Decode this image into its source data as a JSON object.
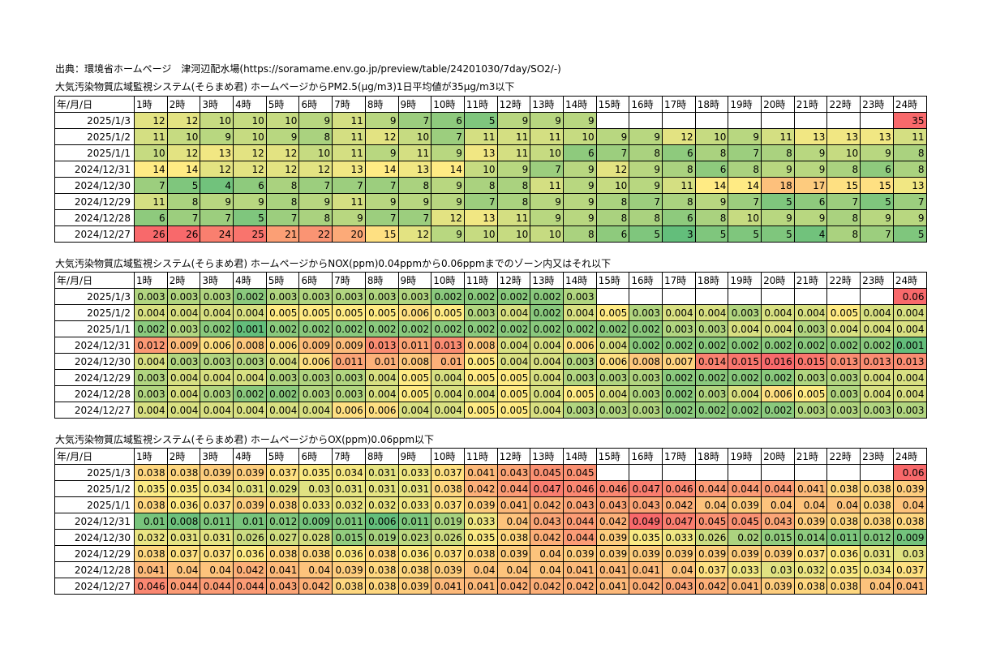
{
  "source_line": "出典：環境省ホームページ　津河辺配水場(https://soramame.env.go.jp/preview/table/24201030/7day/SO2/-)",
  "row_header": "年/月/日",
  "hours": [
    "1時",
    "2時",
    "3時",
    "4時",
    "5時",
    "6時",
    "7時",
    "8時",
    "9時",
    "10時",
    "11時",
    "12時",
    "13時",
    "14時",
    "15時",
    "16時",
    "17時",
    "18時",
    "19時",
    "20時",
    "21時",
    "22時",
    "23時",
    "24時"
  ],
  "dates": [
    "2025/1/3",
    "2025/1/2",
    "2025/1/1",
    "2024/12/31",
    "2024/12/30",
    "2024/12/29",
    "2024/12/28",
    "2024/12/27"
  ],
  "tables": [
    {
      "title": "大気汚染物質広域監視システム(そらまめ君) ホームページからPM2.5(μg/m3)1日平均値が35μg/m3以下",
      "rows": [
        [
          "12",
          "12",
          "10",
          "10",
          "10",
          "9",
          "11",
          "9",
          "7",
          "6",
          "5",
          "9",
          "9",
          "9",
          "",
          "",
          "",
          "",
          "",
          "",
          "",
          "",
          "",
          "35"
        ],
        [
          "11",
          "10",
          "9",
          "10",
          "9",
          "8",
          "11",
          "12",
          "10",
          "7",
          "11",
          "11",
          "11",
          "10",
          "9",
          "9",
          "12",
          "10",
          "9",
          "11",
          "13",
          "13",
          "13",
          "11"
        ],
        [
          "10",
          "12",
          "13",
          "12",
          "12",
          "10",
          "11",
          "9",
          "11",
          "9",
          "13",
          "11",
          "10",
          "6",
          "7",
          "8",
          "6",
          "8",
          "7",
          "8",
          "9",
          "10",
          "9",
          "8"
        ],
        [
          "14",
          "14",
          "12",
          "12",
          "12",
          "12",
          "13",
          "14",
          "13",
          "14",
          "10",
          "9",
          "7",
          "9",
          "12",
          "9",
          "8",
          "6",
          "8",
          "9",
          "9",
          "8",
          "6",
          "8"
        ],
        [
          "7",
          "5",
          "4",
          "6",
          "8",
          "7",
          "7",
          "7",
          "8",
          "9",
          "8",
          "8",
          "11",
          "9",
          "10",
          "9",
          "11",
          "14",
          "14",
          "18",
          "17",
          "15",
          "15",
          "13"
        ],
        [
          "11",
          "8",
          "9",
          "9",
          "8",
          "9",
          "11",
          "9",
          "9",
          "9",
          "7",
          "8",
          "9",
          "9",
          "8",
          "7",
          "8",
          "9",
          "7",
          "5",
          "6",
          "7",
          "5",
          "7"
        ],
        [
          "6",
          "7",
          "7",
          "5",
          "7",
          "8",
          "9",
          "7",
          "7",
          "12",
          "13",
          "11",
          "9",
          "9",
          "8",
          "8",
          "6",
          "8",
          "10",
          "9",
          "9",
          "8",
          "9",
          "9"
        ],
        [
          "26",
          "26",
          "24",
          "25",
          "21",
          "22",
          "20",
          "15",
          "12",
          "9",
          "10",
          "10",
          "10",
          "8",
          "6",
          "5",
          "3",
          "5",
          "5",
          "5",
          "4",
          "8",
          "7",
          "5"
        ]
      ],
      "scale": [
        3,
        14,
        26
      ]
    },
    {
      "title": "大気汚染物質広域監視システム(そらまめ君) ホームページからNOX(ppm)0.04ppmから0.06ppmまでのゾーン内又はそれ以下",
      "rows": [
        [
          "0.003",
          "0.003",
          "0.003",
          "0.002",
          "0.003",
          "0.003",
          "0.003",
          "0.003",
          "0.003",
          "0.002",
          "0.002",
          "0.002",
          "0.002",
          "0.003",
          "",
          "",
          "",
          "",
          "",
          "",
          "",
          "",
          "",
          "0.06"
        ],
        [
          "0.004",
          "0.004",
          "0.004",
          "0.004",
          "0.005",
          "0.005",
          "0.005",
          "0.005",
          "0.006",
          "0.005",
          "0.003",
          "0.004",
          "0.002",
          "0.004",
          "0.005",
          "0.003",
          "0.004",
          "0.004",
          "0.003",
          "0.004",
          "0.004",
          "0.005",
          "0.004",
          "0.004"
        ],
        [
          "0.002",
          "0.003",
          "0.002",
          "0.001",
          "0.002",
          "0.002",
          "0.002",
          "0.002",
          "0.002",
          "0.002",
          "0.002",
          "0.002",
          "0.002",
          "0.002",
          "0.002",
          "0.002",
          "0.003",
          "0.003",
          "0.004",
          "0.004",
          "0.003",
          "0.004",
          "0.004",
          "0.004"
        ],
        [
          "0.012",
          "0.009",
          "0.006",
          "0.008",
          "0.006",
          "0.009",
          "0.009",
          "0.013",
          "0.011",
          "0.013",
          "0.008",
          "0.004",
          "0.004",
          "0.006",
          "0.004",
          "0.002",
          "0.002",
          "0.002",
          "0.002",
          "0.002",
          "0.002",
          "0.002",
          "0.002",
          "0.001"
        ],
        [
          "0.004",
          "0.003",
          "0.003",
          "0.003",
          "0.004",
          "0.006",
          "0.011",
          "0.01",
          "0.008",
          "0.01",
          "0.005",
          "0.004",
          "0.004",
          "0.003",
          "0.006",
          "0.008",
          "0.007",
          "0.014",
          "0.015",
          "0.016",
          "0.015",
          "0.013",
          "0.013",
          "0.013"
        ],
        [
          "0.003",
          "0.004",
          "0.004",
          "0.004",
          "0.003",
          "0.003",
          "0.003",
          "0.004",
          "0.005",
          "0.004",
          "0.005",
          "0.005",
          "0.004",
          "0.003",
          "0.003",
          "0.003",
          "0.002",
          "0.002",
          "0.002",
          "0.002",
          "0.003",
          "0.003",
          "0.004",
          "0.004"
        ],
        [
          "0.003",
          "0.004",
          "0.003",
          "0.002",
          "0.002",
          "0.003",
          "0.003",
          "0.004",
          "0.005",
          "0.004",
          "0.004",
          "0.005",
          "0.004",
          "0.005",
          "0.004",
          "0.003",
          "0.002",
          "0.003",
          "0.004",
          "0.006",
          "0.005",
          "0.003",
          "0.004",
          "0.004"
        ],
        [
          "0.004",
          "0.004",
          "0.004",
          "0.004",
          "0.004",
          "0.004",
          "0.006",
          "0.006",
          "0.004",
          "0.004",
          "0.005",
          "0.005",
          "0.004",
          "0.003",
          "0.003",
          "0.003",
          "0.002",
          "0.002",
          "0.002",
          "0.002",
          "0.003",
          "0.003",
          "0.003",
          "0.003"
        ]
      ],
      "scale": [
        0.001,
        0.005,
        0.016
      ]
    },
    {
      "title": "大気汚染物質広域監視システム(そらまめ君) ホームページからOX(ppm)0.06ppm以下",
      "rows": [
        [
          "0.038",
          "0.038",
          "0.039",
          "0.039",
          "0.037",
          "0.035",
          "0.034",
          "0.031",
          "0.033",
          "0.037",
          "0.041",
          "0.043",
          "0.045",
          "0.045",
          "",
          "",
          "",
          "",
          "",
          "",
          "",
          "",
          "",
          "0.06"
        ],
        [
          "0.035",
          "0.035",
          "0.034",
          "0.031",
          "0.029",
          "0.03",
          "0.031",
          "0.031",
          "0.031",
          "0.038",
          "0.042",
          "0.044",
          "0.047",
          "0.046",
          "0.046",
          "0.047",
          "0.046",
          "0.044",
          "0.044",
          "0.044",
          "0.041",
          "0.038",
          "0.038",
          "0.039"
        ],
        [
          "0.038",
          "0.036",
          "0.037",
          "0.039",
          "0.038",
          "0.033",
          "0.032",
          "0.032",
          "0.033",
          "0.037",
          "0.039",
          "0.041",
          "0.042",
          "0.043",
          "0.043",
          "0.043",
          "0.042",
          "0.04",
          "0.039",
          "0.04",
          "0.04",
          "0.04",
          "0.038",
          "0.04"
        ],
        [
          "0.01",
          "0.008",
          "0.011",
          "0.01",
          "0.012",
          "0.009",
          "0.011",
          "0.006",
          "0.011",
          "0.019",
          "0.033",
          "0.04",
          "0.043",
          "0.044",
          "0.042",
          "0.049",
          "0.047",
          "0.045",
          "0.045",
          "0.043",
          "0.039",
          "0.038",
          "0.038",
          "0.038"
        ],
        [
          "0.032",
          "0.031",
          "0.031",
          "0.026",
          "0.027",
          "0.028",
          "0.015",
          "0.019",
          "0.023",
          "0.026",
          "0.035",
          "0.038",
          "0.042",
          "0.044",
          "0.039",
          "0.035",
          "0.033",
          "0.026",
          "0.02",
          "0.015",
          "0.014",
          "0.011",
          "0.012",
          "0.009"
        ],
        [
          "0.038",
          "0.037",
          "0.037",
          "0.036",
          "0.038",
          "0.038",
          "0.036",
          "0.038",
          "0.036",
          "0.037",
          "0.038",
          "0.039",
          "0.04",
          "0.039",
          "0.039",
          "0.039",
          "0.039",
          "0.039",
          "0.039",
          "0.039",
          "0.037",
          "0.036",
          "0.031",
          "0.03"
        ],
        [
          "0.041",
          "0.04",
          "0.04",
          "0.042",
          "0.041",
          "0.04",
          "0.039",
          "0.038",
          "0.038",
          "0.039",
          "0.04",
          "0.04",
          "0.04",
          "0.041",
          "0.041",
          "0.041",
          "0.04",
          "0.037",
          "0.033",
          "0.03",
          "0.032",
          "0.035",
          "0.034",
          "0.037"
        ],
        [
          "0.046",
          "0.044",
          "0.044",
          "0.044",
          "0.043",
          "0.042",
          "0.038",
          "0.038",
          "0.039",
          "0.041",
          "0.041",
          "0.042",
          "0.042",
          "0.042",
          "0.041",
          "0.042",
          "0.043",
          "0.042",
          "0.041",
          "0.039",
          "0.038",
          "0.038",
          "0.04",
          "0.041"
        ]
      ],
      "scale": [
        0.006,
        0.036,
        0.049
      ]
    }
  ],
  "colors": {
    "low": "#63be7b",
    "mid": "#ffeb84",
    "high": "#f8696b",
    "max_cell": "#f8696b"
  }
}
